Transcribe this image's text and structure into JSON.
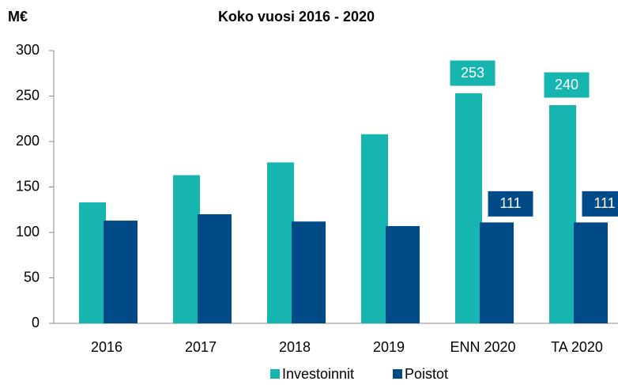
{
  "chart_data": {
    "type": "bar",
    "title": "Koko vuosi 2016 - 2020",
    "y_label": "M€",
    "categories": [
      "2016",
      "2017",
      "2018",
      "2019",
      "ENN 2020",
      "TA 2020"
    ],
    "series": [
      {
        "name": "Investoinnit",
        "color": "#17b5b0",
        "values": [
          133,
          163,
          177,
          208,
          253,
          240
        ],
        "value_labels": [
          null,
          null,
          null,
          null,
          "253",
          "240"
        ]
      },
      {
        "name": "Poistot",
        "color": "#004a87",
        "values": [
          113,
          120,
          112,
          107,
          111,
          111
        ],
        "value_labels": [
          null,
          null,
          null,
          null,
          "111",
          "111"
        ]
      }
    ],
    "ylim": [
      0,
      300
    ],
    "yticks": [
      0,
      50,
      100,
      150,
      200,
      250,
      300
    ],
    "grid": false,
    "legend": "bottom"
  }
}
